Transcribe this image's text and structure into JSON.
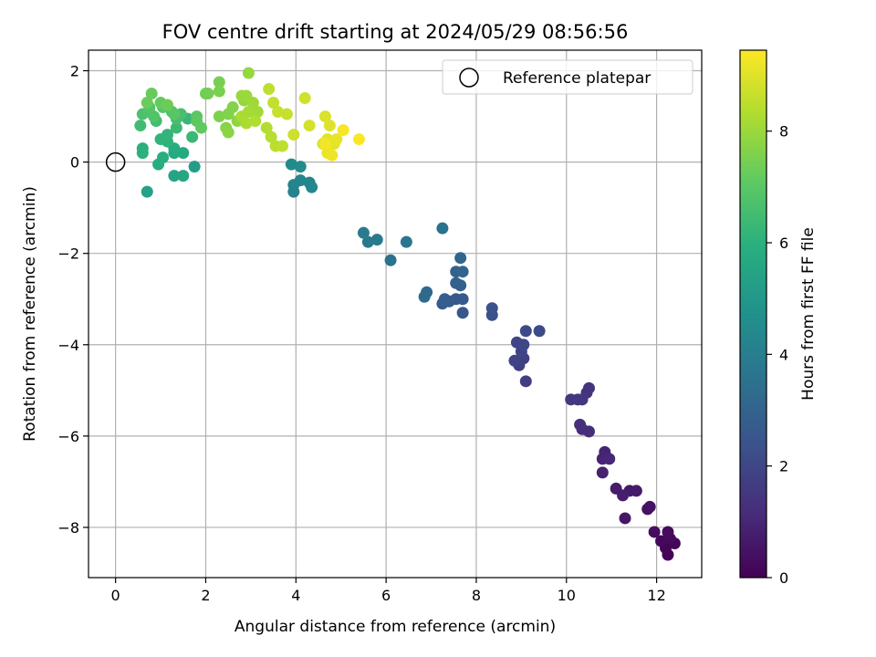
{
  "chart_data": {
    "type": "scatter",
    "title": "FOV centre drift starting at 2024/05/29 08:56:56",
    "xlabel": "Angular distance from reference (arcmin)",
    "ylabel": "Rotation from reference (arcmin)",
    "xlim": [
      -0.6,
      13.0
    ],
    "ylim": [
      -9.1,
      2.45
    ],
    "xticks": [
      0,
      2,
      4,
      6,
      8,
      10,
      12
    ],
    "xtick_labels": [
      "0",
      "2",
      "4",
      "6",
      "8",
      "10",
      "12"
    ],
    "yticks": [
      2,
      0,
      -2,
      -4,
      -6,
      -8
    ],
    "ytick_labels": [
      "2",
      "0",
      "−2",
      "−4",
      "−6",
      "−8"
    ],
    "grid": true,
    "legend": {
      "position": "top-right",
      "entries": [
        "Reference platepar"
      ]
    },
    "reference_point": {
      "x": 0,
      "y": 0
    },
    "colorbar": {
      "label": "Hours from first FF file",
      "range": [
        0,
        9.45
      ],
      "ticks": [
        0,
        2,
        4,
        6,
        8
      ],
      "tick_labels": [
        "0",
        "2",
        "4",
        "6",
        "8"
      ],
      "colormap": "viridis"
    },
    "series": [
      {
        "points": [
          [
            12.25,
            -8.6,
            0.05
          ],
          [
            12.2,
            -8.45,
            0.1
          ],
          [
            12.4,
            -8.35,
            0.15
          ],
          [
            12.1,
            -8.3,
            0.2
          ],
          [
            12.3,
            -8.25,
            0.25
          ],
          [
            12.25,
            -8.1,
            0.3
          ],
          [
            11.95,
            -8.1,
            0.35
          ],
          [
            11.8,
            -7.6,
            0.45
          ],
          [
            11.85,
            -7.55,
            0.5
          ],
          [
            11.3,
            -7.8,
            0.6
          ],
          [
            11.4,
            -7.2,
            0.65
          ],
          [
            11.55,
            -7.2,
            0.7
          ],
          [
            11.1,
            -7.15,
            0.75
          ],
          [
            11.25,
            -7.3,
            0.8
          ],
          [
            10.8,
            -6.8,
            0.9
          ],
          [
            10.85,
            -6.35,
            0.95
          ],
          [
            10.8,
            -6.5,
            1.0
          ],
          [
            10.95,
            -6.5,
            1.05
          ],
          [
            10.35,
            -5.85,
            1.2
          ],
          [
            10.5,
            -5.9,
            1.25
          ],
          [
            10.3,
            -5.75,
            1.3
          ],
          [
            10.45,
            -5.05,
            1.4
          ],
          [
            10.5,
            -4.95,
            1.45
          ],
          [
            10.25,
            -5.2,
            1.5
          ],
          [
            10.35,
            -5.2,
            1.55
          ],
          [
            10.1,
            -5.2,
            1.6
          ],
          [
            9.1,
            -4.8,
            1.75
          ],
          [
            8.95,
            -4.45,
            1.8
          ],
          [
            9.05,
            -4.3,
            1.85
          ],
          [
            8.85,
            -4.35,
            1.9
          ],
          [
            9.0,
            -4.15,
            1.95
          ],
          [
            8.9,
            -3.95,
            2.0
          ],
          [
            9.05,
            -4.0,
            2.05
          ],
          [
            9.1,
            -3.7,
            2.1
          ],
          [
            9.4,
            -3.7,
            2.15
          ],
          [
            8.35,
            -3.35,
            2.35
          ],
          [
            8.35,
            -3.2,
            2.4
          ],
          [
            7.7,
            -3.3,
            2.6
          ],
          [
            7.7,
            -3.0,
            2.65
          ],
          [
            7.55,
            -3.0,
            2.7
          ],
          [
            7.4,
            -3.05,
            2.75
          ],
          [
            7.25,
            -3.1,
            2.8
          ],
          [
            7.3,
            -3.0,
            2.85
          ],
          [
            7.65,
            -2.7,
            2.9
          ],
          [
            7.55,
            -2.65,
            2.95
          ],
          [
            7.55,
            -2.4,
            3.0
          ],
          [
            7.7,
            -2.4,
            3.05
          ],
          [
            7.65,
            -2.1,
            3.1
          ],
          [
            6.9,
            -2.85,
            3.25
          ],
          [
            6.85,
            -2.95,
            3.3
          ],
          [
            7.25,
            -1.45,
            3.55
          ],
          [
            6.1,
            -2.15,
            3.6
          ],
          [
            6.45,
            -1.75,
            3.7
          ],
          [
            5.6,
            -1.75,
            3.85
          ],
          [
            5.8,
            -1.7,
            3.9
          ],
          [
            5.5,
            -1.55,
            3.95
          ],
          [
            3.95,
            -0.65,
            4.2
          ],
          [
            3.95,
            -0.5,
            4.25
          ],
          [
            4.1,
            -0.4,
            4.3
          ],
          [
            4.3,
            -0.45,
            4.35
          ],
          [
            4.35,
            -0.55,
            4.4
          ],
          [
            3.9,
            -0.05,
            4.5
          ],
          [
            4.1,
            -0.1,
            4.55
          ],
          [
            1.75,
            -0.1,
            5.25
          ],
          [
            0.7,
            -0.65,
            5.4
          ],
          [
            1.3,
            -0.3,
            5.6
          ],
          [
            1.5,
            -0.3,
            5.65
          ],
          [
            1.5,
            0.2,
            5.75
          ],
          [
            1.3,
            0.2,
            5.8
          ],
          [
            1.3,
            0.3,
            5.85
          ],
          [
            0.95,
            -0.05,
            5.9
          ],
          [
            1.05,
            0.1,
            5.95
          ],
          [
            0.6,
            0.3,
            6.0
          ],
          [
            0.6,
            0.2,
            6.05
          ],
          [
            1.15,
            0.45,
            6.1
          ],
          [
            1.0,
            0.5,
            6.15
          ],
          [
            1.15,
            0.6,
            6.2
          ],
          [
            1.6,
            0.95,
            6.3
          ],
          [
            1.7,
            0.55,
            6.35
          ],
          [
            1.35,
            0.75,
            6.4
          ],
          [
            0.55,
            0.8,
            6.5
          ],
          [
            0.9,
            0.9,
            6.55
          ],
          [
            1.35,
            0.95,
            6.6
          ],
          [
            1.45,
            1.05,
            6.65
          ],
          [
            1.25,
            1.1,
            6.7
          ],
          [
            0.6,
            1.05,
            6.75
          ],
          [
            0.75,
            1.1,
            6.8
          ],
          [
            0.85,
            1.0,
            6.85
          ],
          [
            0.75,
            1.2,
            6.9
          ],
          [
            1.05,
            1.2,
            6.95
          ],
          [
            1.3,
            1.05,
            7.0
          ],
          [
            1.8,
            1.0,
            7.05
          ],
          [
            1.8,
            0.9,
            7.1
          ],
          [
            1.9,
            0.75,
            7.15
          ],
          [
            1.0,
            1.3,
            7.2
          ],
          [
            0.8,
            1.5,
            7.25
          ],
          [
            0.7,
            1.3,
            7.3
          ],
          [
            1.15,
            1.25,
            7.35
          ],
          [
            2.0,
            1.5,
            7.4
          ],
          [
            2.05,
            1.5,
            7.45
          ],
          [
            2.3,
            1.75,
            7.5
          ],
          [
            2.3,
            1.55,
            7.55
          ],
          [
            2.3,
            1.0,
            7.6
          ],
          [
            2.5,
            1.05,
            7.65
          ],
          [
            2.6,
            1.2,
            7.7
          ],
          [
            2.45,
            0.75,
            7.75
          ],
          [
            2.5,
            0.65,
            7.8
          ],
          [
            2.7,
            0.9,
            7.85
          ],
          [
            2.85,
            1.35,
            7.9
          ],
          [
            2.95,
            1.95,
            7.95
          ],
          [
            2.8,
            1.45,
            8.0
          ],
          [
            2.9,
            1.45,
            8.05
          ],
          [
            3.05,
            1.3,
            8.1
          ],
          [
            3.15,
            1.1,
            8.15
          ],
          [
            2.95,
            1.1,
            8.2
          ],
          [
            2.8,
            1.0,
            8.25
          ],
          [
            2.9,
            0.85,
            8.3
          ],
          [
            3.1,
            0.9,
            8.35
          ],
          [
            3.35,
            0.75,
            8.4
          ],
          [
            3.45,
            0.55,
            8.45
          ],
          [
            3.55,
            0.35,
            8.5
          ],
          [
            3.7,
            0.35,
            8.55
          ],
          [
            3.4,
            1.6,
            8.55
          ],
          [
            3.5,
            1.3,
            8.6
          ],
          [
            3.6,
            1.1,
            8.65
          ],
          [
            3.8,
            1.05,
            8.7
          ],
          [
            3.95,
            0.6,
            8.75
          ],
          [
            4.2,
            1.4,
            8.8
          ],
          [
            4.3,
            0.8,
            8.85
          ],
          [
            4.6,
            0.4,
            8.9
          ],
          [
            4.65,
            1.0,
            8.95
          ],
          [
            4.75,
            0.8,
            9.0
          ],
          [
            4.7,
            0.5,
            9.05
          ],
          [
            4.85,
            0.4,
            9.1
          ],
          [
            4.9,
            0.5,
            9.15
          ],
          [
            4.7,
            0.2,
            9.2
          ],
          [
            4.8,
            0.15,
            9.25
          ],
          [
            4.65,
            0.4,
            9.3
          ],
          [
            5.05,
            0.7,
            9.35
          ],
          [
            5.4,
            0.5,
            9.4
          ]
        ]
      }
    ]
  }
}
